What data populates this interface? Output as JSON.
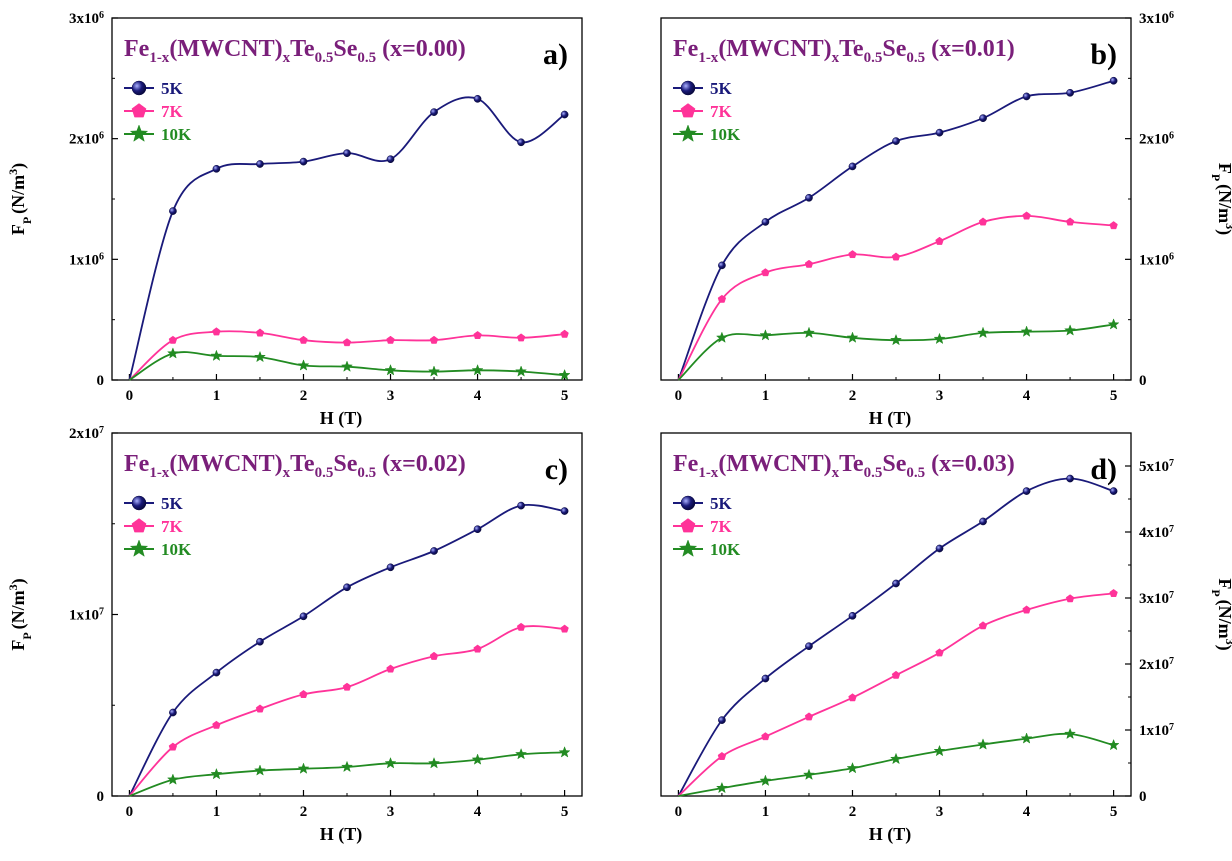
{
  "colors": {
    "series_5K": "#1a1a7a",
    "series_7K": "#ff3399",
    "series_10K": "#228b22",
    "title": "#7a1f7a"
  },
  "chart_data": [
    {
      "type": "line",
      "panel_label": "a)",
      "title": {
        "base": "Fe",
        "sub1": "1-x",
        "mid1": "(MWCNT)",
        "sub2": "x",
        "mid2": "Te",
        "sub3": "0.5",
        "mid3": "Se",
        "sub4": "0.5",
        "tail": " (x=0.00)"
      },
      "xlabel": "H (T)",
      "ylabel": {
        "base": "F",
        "sub": "P",
        "unit": "(N/m",
        "sup": "3",
        "close": ")"
      },
      "y_axis_side": "left",
      "xlim": [
        -0.2,
        5.2
      ],
      "ylim": [
        0,
        3000000
      ],
      "x_ticks": [
        "0",
        "1",
        "2",
        "3",
        "4",
        "5"
      ],
      "y_ticks": [
        {
          "value": 0,
          "base": "0",
          "exp": ""
        },
        {
          "value": 1000000,
          "base": "1x10",
          "exp": "6"
        },
        {
          "value": 2000000,
          "base": "2x10",
          "exp": "6"
        },
        {
          "value": 3000000,
          "base": "3x10",
          "exp": "6"
        }
      ],
      "legend_placement": "top-left",
      "x": [
        0,
        0.5,
        1,
        1.5,
        2,
        2.5,
        3,
        3.5,
        4,
        4.5,
        5
      ],
      "series": [
        {
          "name": "5K",
          "values": [
            0,
            1400000,
            1750000,
            1790000,
            1810000,
            1880000,
            1830000,
            2220000,
            2330000,
            1970000,
            2200000
          ]
        },
        {
          "name": "7K",
          "values": [
            0,
            330000,
            400000,
            390000,
            330000,
            310000,
            330000,
            330000,
            370000,
            350000,
            380000
          ]
        },
        {
          "name": "10K",
          "values": [
            0,
            220000,
            200000,
            190000,
            120000,
            110000,
            80000,
            70000,
            80000,
            70000,
            40000
          ]
        }
      ]
    },
    {
      "type": "line",
      "panel_label": "b)",
      "title": {
        "base": "Fe",
        "sub1": "1-x",
        "mid1": "(MWCNT)",
        "sub2": "x",
        "mid2": "Te",
        "sub3": "0.5",
        "mid3": "Se",
        "sub4": "0.5",
        "tail": " (x=0.01)"
      },
      "xlabel": "H (T)",
      "ylabel": {
        "base": "F",
        "sub": "P",
        "unit": "(N/m",
        "sup": "3",
        "close": ")"
      },
      "y_axis_side": "right",
      "xlim": [
        -0.2,
        5.2
      ],
      "ylim": [
        0,
        3000000
      ],
      "x_ticks": [
        "0",
        "1",
        "2",
        "3",
        "4",
        "5"
      ],
      "y_ticks": [
        {
          "value": 0,
          "base": "0",
          "exp": ""
        },
        {
          "value": 1000000,
          "base": "1x10",
          "exp": "6"
        },
        {
          "value": 2000000,
          "base": "2x10",
          "exp": "6"
        },
        {
          "value": 3000000,
          "base": "3x10",
          "exp": "6"
        }
      ],
      "legend_placement": "top-left",
      "x": [
        0,
        0.5,
        1,
        1.5,
        2,
        2.5,
        3,
        3.5,
        4,
        4.5,
        5
      ],
      "series": [
        {
          "name": "5K",
          "values": [
            0,
            950000,
            1310000,
            1510000,
            1770000,
            1980000,
            2050000,
            2170000,
            2350000,
            2380000,
            2480000
          ]
        },
        {
          "name": "7K",
          "values": [
            0,
            670000,
            890000,
            960000,
            1040000,
            1020000,
            1150000,
            1310000,
            1360000,
            1310000,
            1280000
          ]
        },
        {
          "name": "10K",
          "values": [
            0,
            350000,
            370000,
            390000,
            350000,
            330000,
            340000,
            390000,
            400000,
            410000,
            460000
          ]
        }
      ]
    },
    {
      "type": "line",
      "panel_label": "c)",
      "title": {
        "base": "Fe",
        "sub1": "1-x",
        "mid1": "(MWCNT)",
        "sub2": "x",
        "mid2": "Te",
        "sub3": "0.5",
        "mid3": "Se",
        "sub4": "0.5",
        "tail": " (x=0.02)"
      },
      "xlabel": "H (T)",
      "ylabel": {
        "base": "F",
        "sub": "P",
        "unit": "(N/m",
        "sup": "3",
        "close": ")"
      },
      "y_axis_side": "left",
      "xlim": [
        -0.2,
        5.2
      ],
      "ylim": [
        0,
        20000000
      ],
      "x_ticks": [
        "0",
        "1",
        "2",
        "3",
        "4",
        "5"
      ],
      "y_ticks": [
        {
          "value": 0,
          "base": "0",
          "exp": ""
        },
        {
          "value": 10000000,
          "base": "1x10",
          "exp": "7"
        },
        {
          "value": 20000000,
          "base": "2x10",
          "exp": "7"
        }
      ],
      "legend_placement": "top-left",
      "x": [
        0,
        0.5,
        1,
        1.5,
        2,
        2.5,
        3,
        3.5,
        4,
        4.5,
        5
      ],
      "series": [
        {
          "name": "5K",
          "values": [
            0,
            4600000,
            6800000,
            8500000,
            9900000,
            11500000,
            12600000,
            13500000,
            14700000,
            16000000,
            15700000
          ]
        },
        {
          "name": "7K",
          "values": [
            0,
            2700000,
            3900000,
            4800000,
            5600000,
            6000000,
            7000000,
            7700000,
            8100000,
            9300000,
            9200000
          ]
        },
        {
          "name": "10K",
          "values": [
            0,
            900000,
            1200000,
            1400000,
            1500000,
            1600000,
            1800000,
            1800000,
            2000000,
            2300000,
            2400000
          ]
        }
      ]
    },
    {
      "type": "line",
      "panel_label": "d)",
      "title": {
        "base": "Fe",
        "sub1": "1-x",
        "mid1": "(MWCNT)",
        "sub2": "x",
        "mid2": "Te",
        "sub3": "0.5",
        "mid3": "Se",
        "sub4": "0.5",
        "tail": " (x=0.03)"
      },
      "xlabel": "H (T)",
      "ylabel": {
        "base": "F",
        "sub": "P",
        "unit": "(N/m",
        "sup": "3",
        "close": ")"
      },
      "y_axis_side": "right",
      "xlim": [
        -0.2,
        5.2
      ],
      "ylim": [
        0,
        55000000
      ],
      "x_ticks": [
        "0",
        "1",
        "2",
        "3",
        "4",
        "5"
      ],
      "y_ticks": [
        {
          "value": 0,
          "base": "0",
          "exp": ""
        },
        {
          "value": 10000000,
          "base": "1x10",
          "exp": "7"
        },
        {
          "value": 20000000,
          "base": "2x10",
          "exp": "7"
        },
        {
          "value": 30000000,
          "base": "3x10",
          "exp": "7"
        },
        {
          "value": 40000000,
          "base": "4x10",
          "exp": "7"
        },
        {
          "value": 50000000,
          "base": "5x10",
          "exp": "7"
        }
      ],
      "legend_placement": "top-left",
      "x": [
        0,
        0.5,
        1,
        1.5,
        2,
        2.5,
        3,
        3.5,
        4,
        4.5,
        5
      ],
      "series": [
        {
          "name": "5K",
          "values": [
            0,
            11500000,
            17800000,
            22700000,
            27300000,
            32200000,
            37500000,
            41600000,
            46200000,
            48100000,
            46200000
          ]
        },
        {
          "name": "7K",
          "values": [
            0,
            6000000,
            9000000,
            12000000,
            14900000,
            18300000,
            21700000,
            25800000,
            28200000,
            29900000,
            30700000
          ]
        },
        {
          "name": "10K",
          "values": [
            0,
            1200000,
            2300000,
            3200000,
            4200000,
            5600000,
            6800000,
            7800000,
            8700000,
            9400000,
            7700000
          ]
        }
      ]
    }
  ]
}
